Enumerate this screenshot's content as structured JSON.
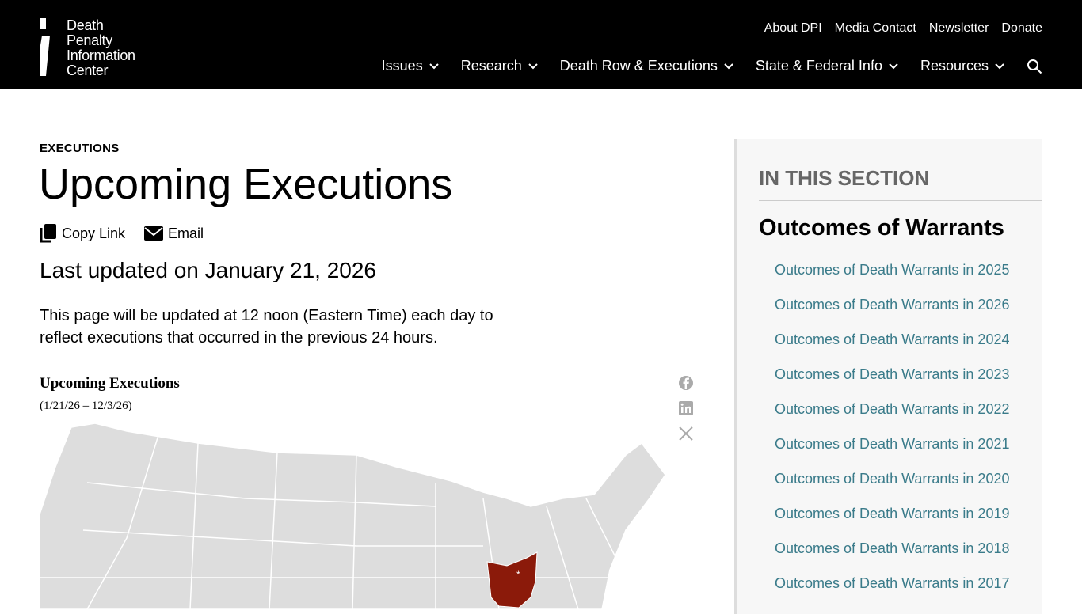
{
  "header": {
    "logo_text": [
      "Death",
      "Penalty",
      "Information",
      "Center"
    ],
    "utility": [
      "About DPI",
      "Media Contact",
      "Newsletter",
      "Donate"
    ],
    "nav": [
      "Issues",
      "Research",
      "Death Row & Executions",
      "State & Federal Info",
      "Resources"
    ]
  },
  "page": {
    "breadcrumb": "EXECUTIONS",
    "title": "Upcoming Executions",
    "copy_link": "Copy Link",
    "email": "Email",
    "updated": "Last updated on January 21, 2026",
    "desc": "This page will be updated at 12 noon (Eastern Time) each day to reflect executions that occurred in the previous 24 hours.",
    "map_title": "Upcoming Executions",
    "map_subtitle": "(1/21/26 – 12/3/26)",
    "highlight_state": "Ohio",
    "highlight_color": "#8b1a0a",
    "map_marker": "*"
  },
  "sidebar": {
    "heading": "IN THIS SECTION",
    "section": "Outcomes of Warrants",
    "links": [
      "Outcomes of Death Warrants in 2025",
      "Outcomes of Death Warrants in 2026",
      "Outcomes of Death Warrants in 2024",
      "Outcomes of Death Warrants in 2023",
      "Outcomes of Death Warrants in 2022",
      "Outcomes of Death Warrants in 2021",
      "Outcomes of Death Warrants in 2020",
      "Outcomes of Death Warrants in 2019",
      "Outcomes of Death Warrants in 2018",
      "Outcomes of Death Warrants in 2017"
    ]
  }
}
